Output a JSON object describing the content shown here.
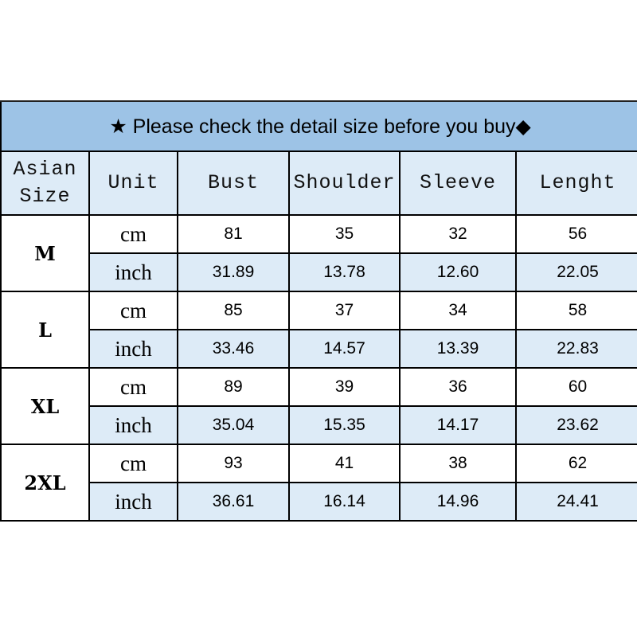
{
  "title": "★ Please check the detail size before you buy◆",
  "colors": {
    "title_bg": "#9dc3e6",
    "header_bg": "#ddebf7",
    "inch_row_bg": "#ddebf7",
    "border": "#000000"
  },
  "headers": [
    "Asian Size",
    "Unit",
    "Bust",
    "Shoulder",
    "Sleeve",
    "Lenght"
  ],
  "rows": [
    {
      "size": "M",
      "cm": {
        "unit": "cm",
        "values": [
          "81",
          "35",
          "32",
          "56"
        ]
      },
      "inch": {
        "unit": "inch",
        "values": [
          "31.89",
          "13.78",
          "12.60",
          "22.05"
        ]
      }
    },
    {
      "size": "L",
      "cm": {
        "unit": "cm",
        "values": [
          "85",
          "37",
          "34",
          "58"
        ]
      },
      "inch": {
        "unit": "inch",
        "values": [
          "33.46",
          "14.57",
          "13.39",
          "22.83"
        ]
      }
    },
    {
      "size": "XL",
      "cm": {
        "unit": "cm",
        "values": [
          "89",
          "39",
          "36",
          "60"
        ]
      },
      "inch": {
        "unit": "inch",
        "values": [
          "35.04",
          "15.35",
          "14.17",
          "23.62"
        ]
      }
    },
    {
      "size": "2XL",
      "cm": {
        "unit": "cm",
        "values": [
          "93",
          "41",
          "38",
          "62"
        ]
      },
      "inch": {
        "unit": "inch",
        "values": [
          "36.61",
          "16.14",
          "14.96",
          "24.41"
        ]
      }
    }
  ]
}
